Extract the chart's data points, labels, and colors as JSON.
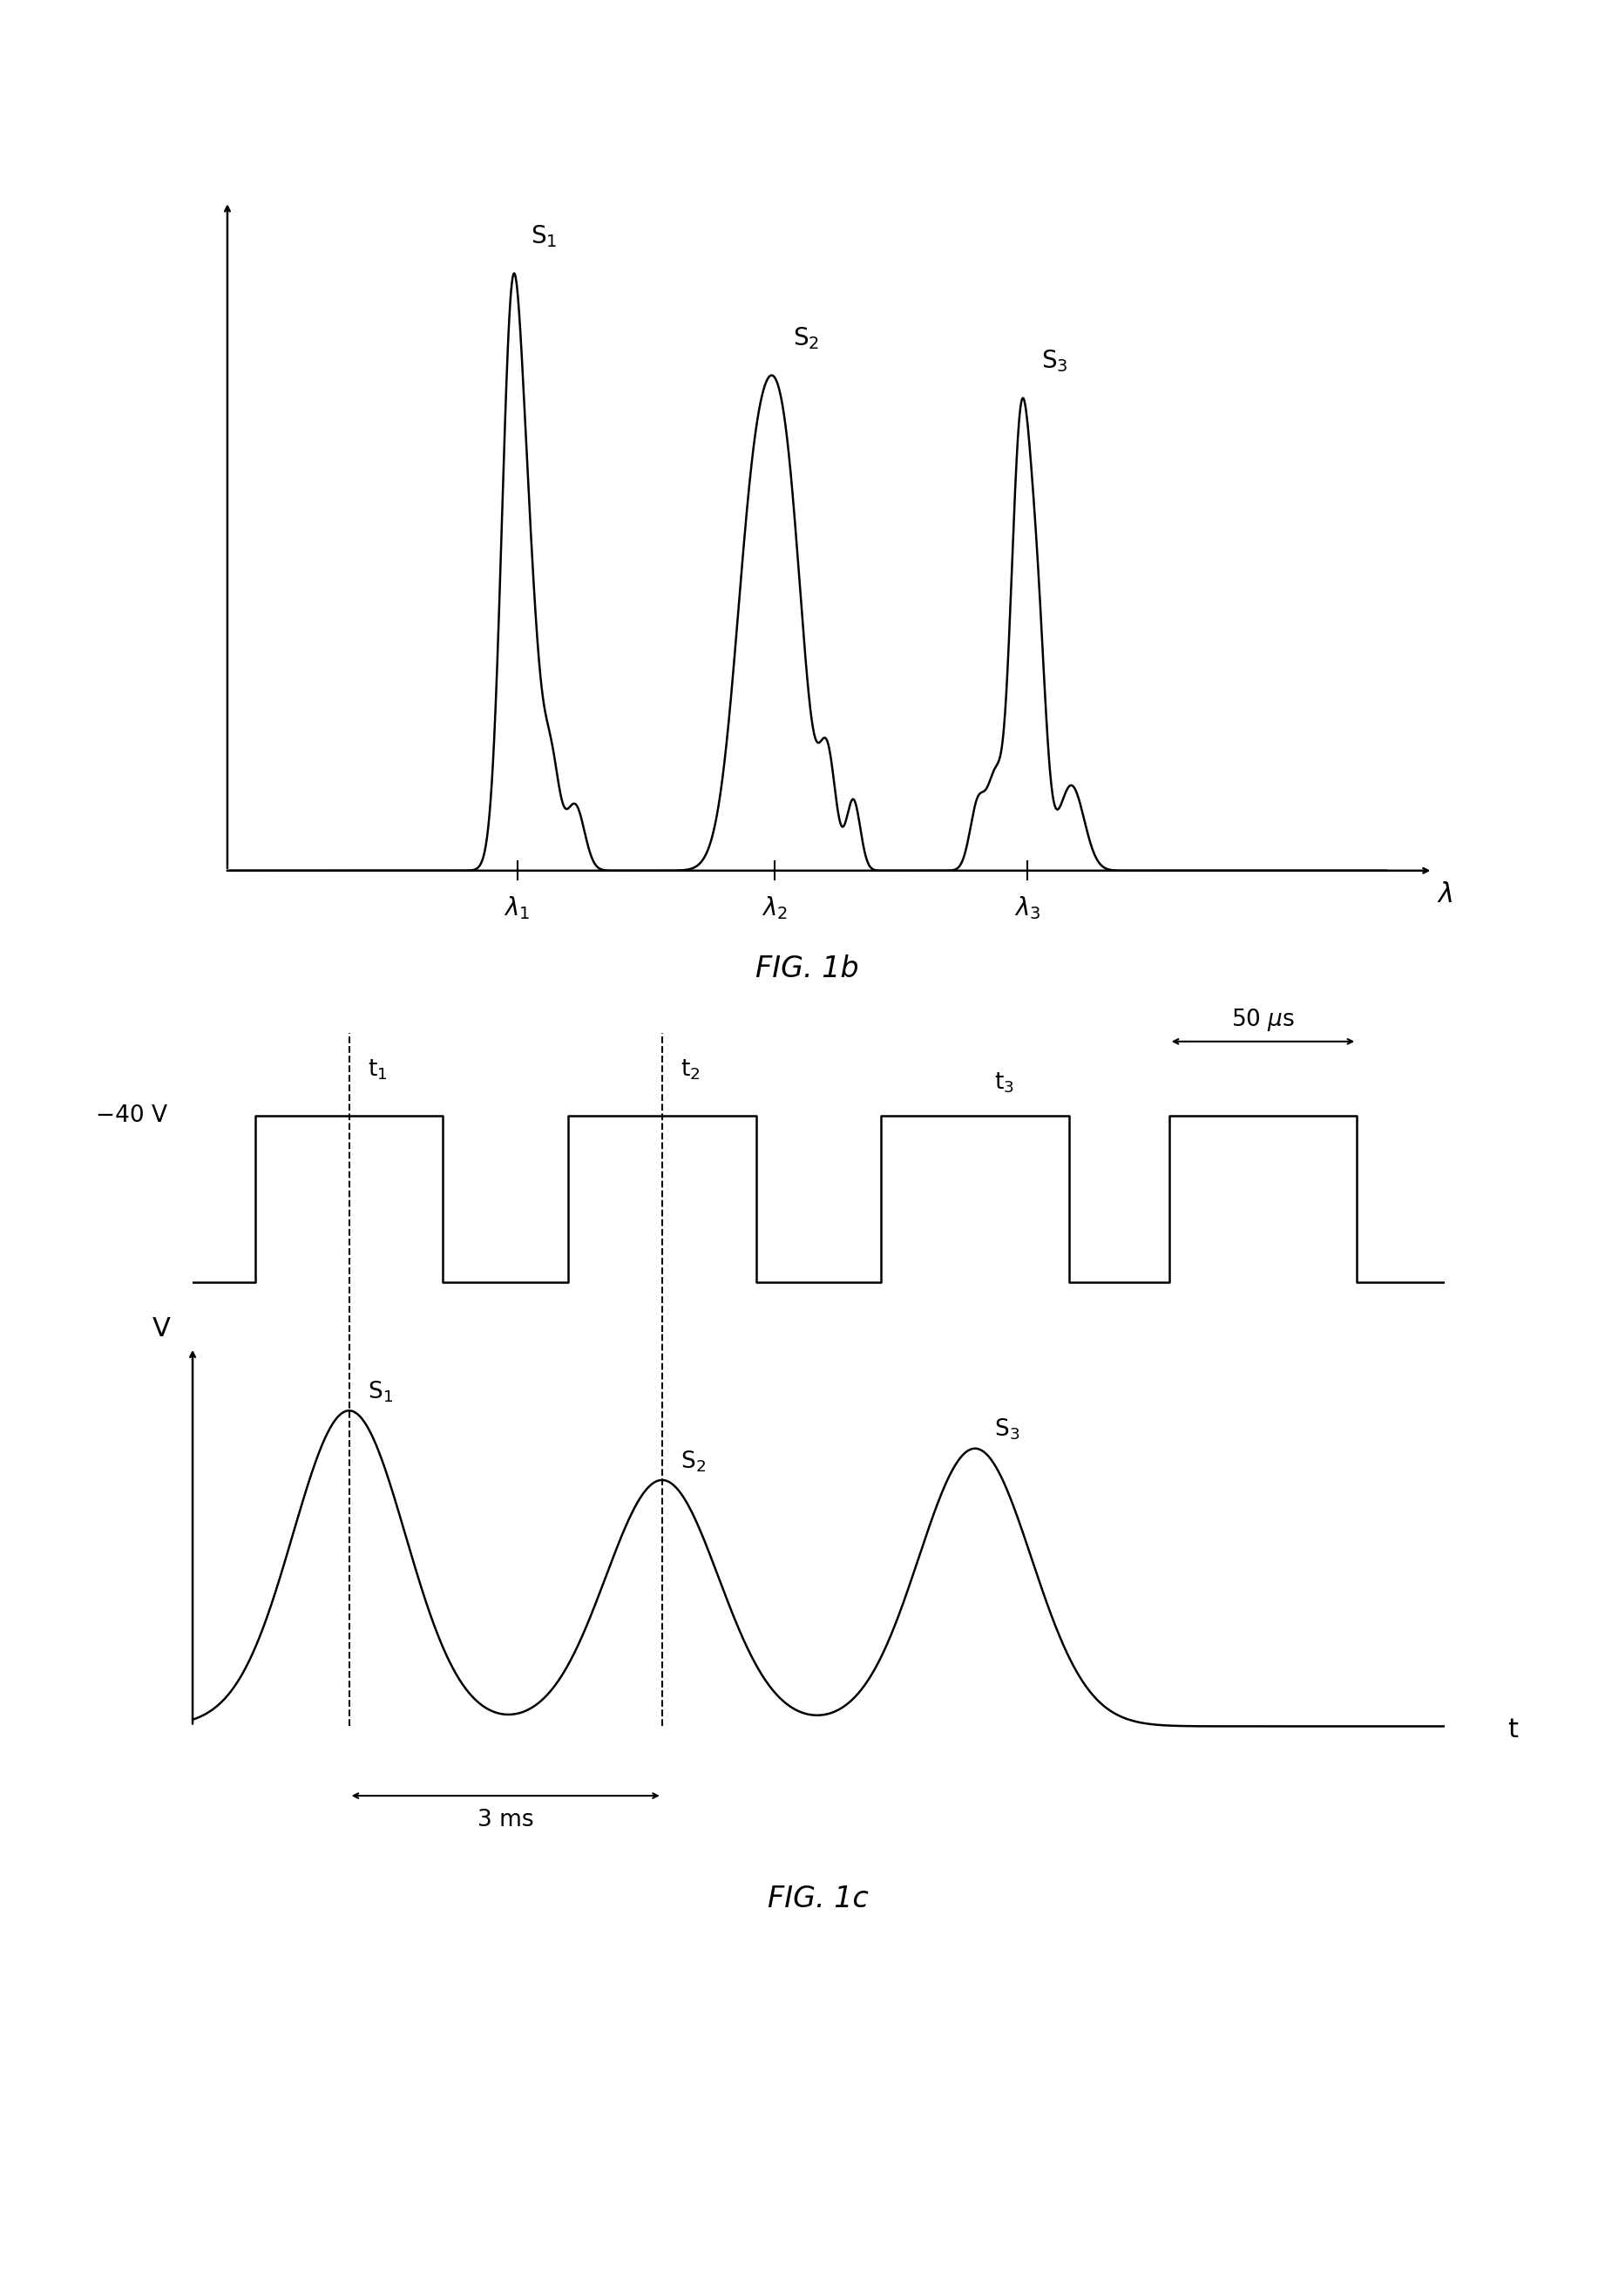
{
  "fig_width": 18.42,
  "fig_height": 26.34,
  "bg_color": "#ffffff",
  "line_color": "#000000",
  "fig1b_caption": "FIG. 1b",
  "fig1c_caption": "FIG. 1c",
  "s1_label": "S$_1$",
  "s2_label": "S$_2$",
  "s3_label": "S$_3$",
  "lambda_label": "$\\lambda$",
  "lambda1_label": "$\\lambda_1$",
  "lambda2_label": "$\\lambda_2$",
  "lambda3_label": "$\\lambda_3$",
  "voltage_label": "−40 V",
  "v_label": "V",
  "t_label": "t",
  "t1_label": "t$_1$",
  "t2_label": "t$_2$",
  "t3_label": "t$_3$",
  "annotation_50us": "50 $\\mu$s",
  "annotation_3ms": "3 ms"
}
